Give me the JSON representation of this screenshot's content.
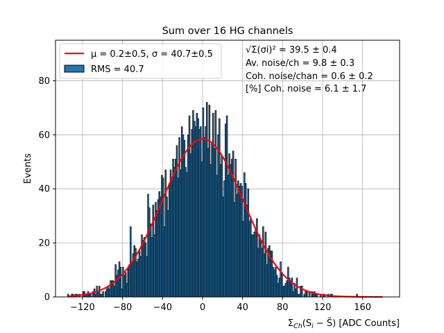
{
  "chart_data": {
    "type": "bar",
    "title": "Sum over 16 HG channels",
    "xlabel": "Σ_Ch(S_i − S̄) [ADC Counts]",
    "xlabel_parts": {
      "sigma": "Σ",
      "sub": "Ch",
      "body": "(S",
      "sub_i": "i",
      "minus": " − ",
      "sbar": "S̄",
      "close": ") [ADC Counts]"
    },
    "ylabel": "Events",
    "xlim": [
      -147,
      197
    ],
    "ylim": [
      0,
      95
    ],
    "xticks": [
      -120,
      -80,
      -40,
      0,
      40,
      80,
      120,
      160
    ],
    "xtick_labels": [
      "−120",
      "−80",
      "−40",
      "0",
      "40",
      "80",
      "120",
      "160"
    ],
    "yticks": [
      0,
      20,
      40,
      60,
      80
    ],
    "grid": true,
    "bin_width": 1.25,
    "hist_start": -135,
    "hist_end": 180,
    "series": [
      {
        "name": "RMS = 40.7",
        "kind": "histogram",
        "color": "#1f77b4",
        "edgecolor": "#000000",
        "gaussian_envelope": {
          "mean": 0.2,
          "sigma": 40.7,
          "amplitude": 58.5
        },
        "peak_bars": [
          {
            "x": 3.5,
            "y": 72
          },
          {
            "x": 6.5,
            "y": 71
          },
          {
            "x": 0.5,
            "y": 70
          },
          {
            "x": -10,
            "y": 69
          },
          {
            "x": 13,
            "y": 69
          },
          {
            "x": -6,
            "y": 68
          },
          {
            "x": 9.5,
            "y": 68
          },
          {
            "x": -14,
            "y": 67
          },
          {
            "x": 16,
            "y": 66
          },
          {
            "x": -21,
            "y": 63
          },
          {
            "x": 22,
            "y": 64
          },
          {
            "x": -38,
            "y": 47
          },
          {
            "x": 33,
            "y": 51
          },
          {
            "x": 38,
            "y": 42
          },
          {
            "x": -55,
            "y": 38
          },
          {
            "x": 45,
            "y": 40
          },
          {
            "x": -72,
            "y": 26
          },
          {
            "x": -88,
            "y": 12
          }
        ]
      },
      {
        "name": "μ = 0.2±0.5, σ = 40.7±0.5",
        "kind": "line",
        "color": "#ff0000",
        "function": "gaussian",
        "mean": 0.2,
        "sigma": 40.7,
        "amplitude": 58.5,
        "x_range": [
          -135,
          180
        ]
      }
    ],
    "legend": {
      "placement": "upper-left",
      "entries": [
        {
          "kind": "line",
          "color": "#ff0000",
          "label": "μ = 0.2±0.5, σ = 40.7±0.5"
        },
        {
          "kind": "patch",
          "color": "#1f77b4",
          "label": "RMS = 40.7"
        }
      ]
    },
    "annotations": [
      {
        "text": "√Σ(σi)² = 39.5 ± 0.4"
      },
      {
        "text": "Av. noise/ch  = 9.8 ± 0.3"
      },
      {
        "text": "Coh. noise/chan  = 0.6 ± 0.2"
      },
      {
        "text": "[%] Coh. noise  = 6.1 ± 1.7"
      }
    ]
  }
}
